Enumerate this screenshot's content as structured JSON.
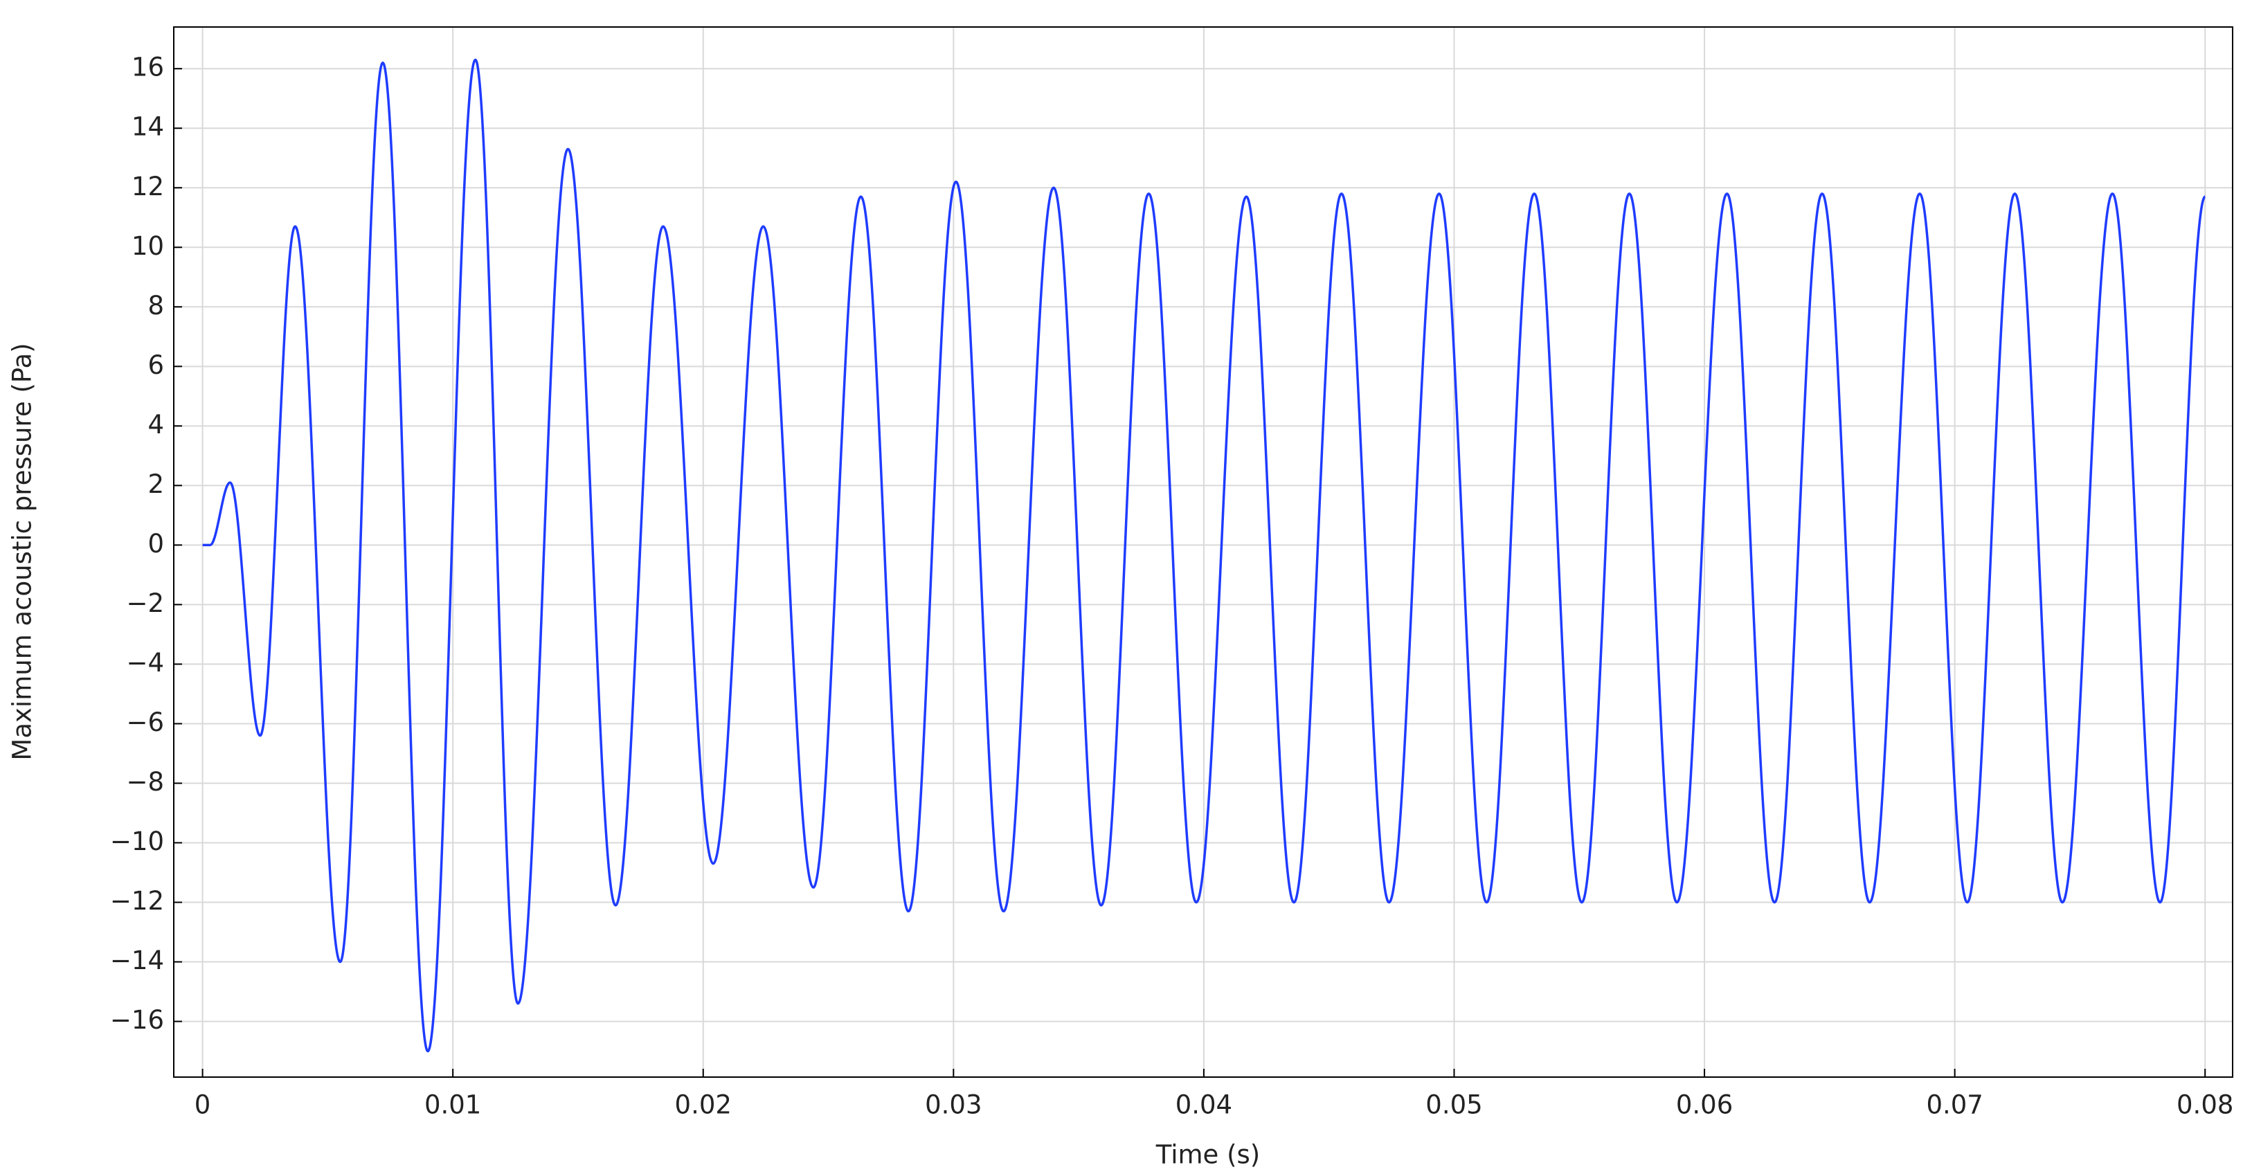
{
  "chart_data": {
    "type": "line",
    "x_label": "Time (s)",
    "y_label": "Maximum acoustic pressure (Pa)",
    "x": [
      0,
      0.0003,
      0.0011,
      0.0023,
      0.0037,
      0.0055,
      0.0072,
      0.009,
      0.0109,
      0.0126,
      0.0146,
      0.0165,
      0.0184,
      0.0204,
      0.0224,
      0.0244,
      0.0263,
      0.0282,
      0.0301,
      0.032,
      0.034,
      0.0359,
      0.0378,
      0.0397,
      0.0417,
      0.0436,
      0.0455,
      0.0474,
      0.0494,
      0.0513,
      0.0532,
      0.0551,
      0.057,
      0.0589,
      0.0609,
      0.0628,
      0.0647,
      0.0666,
      0.0686,
      0.0705,
      0.0724,
      0.0743,
      0.0763,
      0.0782,
      0.08
    ],
    "series": [
      {
        "color": "#1f3cff",
        "values": [
          0,
          0,
          2.1,
          -6.4,
          10.7,
          -14,
          16.2,
          -17,
          16.3,
          -15.4,
          13.3,
          -12.1,
          10.7,
          -10.7,
          10.7,
          -11.5,
          11.7,
          -12.3,
          12.2,
          -12.3,
          12,
          -12.1,
          11.8,
          -12,
          11.7,
          -12,
          11.8,
          -12,
          11.8,
          -12,
          11.8,
          -12,
          11.8,
          -12,
          11.8,
          -12,
          11.8,
          -12,
          11.8,
          -12,
          11.8,
          -12,
          11.8,
          -12,
          11.7
        ]
      }
    ],
    "xlim": [
      -0.00115,
      0.0811
    ],
    "ylim": [
      -17.87,
      17.4
    ],
    "xticks": [
      0,
      0.01,
      0.02,
      0.03,
      0.04,
      0.05,
      0.06,
      0.07,
      0.08
    ],
    "yticks": [
      {
        "value": -16,
        "label": "−16"
      },
      {
        "value": -14,
        "label": "−14"
      },
      {
        "value": -12,
        "label": "−12"
      },
      {
        "value": -10,
        "label": "−10"
      },
      {
        "value": -8,
        "label": "−8"
      },
      {
        "value": -6,
        "label": "−6"
      },
      {
        "value": -4,
        "label": "−4"
      },
      {
        "value": -2,
        "label": "−2"
      },
      0,
      2,
      4,
      6,
      8,
      10,
      12,
      14,
      16
    ],
    "grid": true
  }
}
